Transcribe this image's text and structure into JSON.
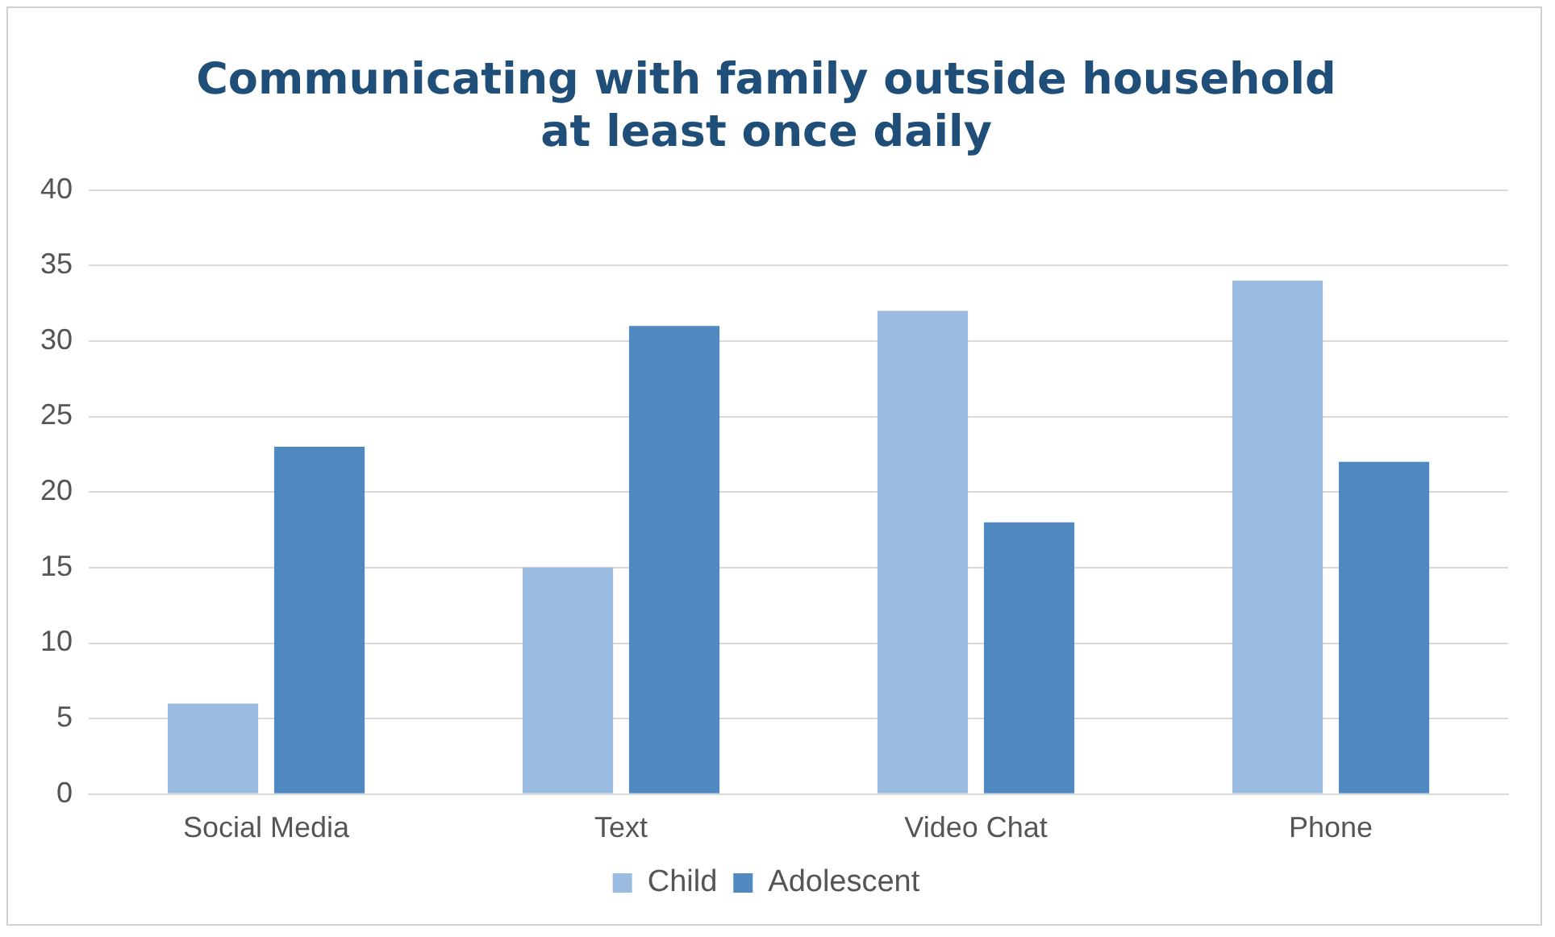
{
  "chart_data": {
    "type": "bar",
    "title": "Communicating with family outside household\nat least once daily",
    "categories": [
      "Social Media",
      "Text",
      "Video Chat",
      "Phone"
    ],
    "series": [
      {
        "name": "Child",
        "color": "#9bbbe0",
        "values": [
          6,
          15,
          32,
          34
        ]
      },
      {
        "name": "Adolescent",
        "color": "#4f89bf",
        "values": [
          23,
          31,
          18,
          22
        ]
      }
    ],
    "ylim": [
      0,
      40
    ],
    "yticks": [
      0,
      5,
      10,
      15,
      20,
      25,
      30,
      35,
      40
    ],
    "grid": "y",
    "legend": "bottom"
  }
}
